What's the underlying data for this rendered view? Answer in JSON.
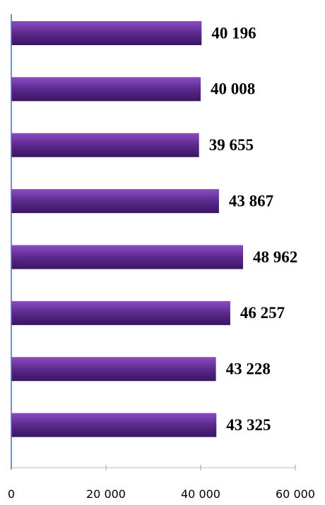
{
  "chart_data": {
    "type": "bar",
    "orientation": "horizontal",
    "values": [
      40196,
      40008,
      39655,
      43867,
      48962,
      46257,
      43228,
      43325
    ],
    "value_labels": [
      "40 196",
      "40 008",
      "39 655",
      "43 867",
      "48 962",
      "46 257",
      "43 228",
      "43 325"
    ],
    "color": "#5b2a8c",
    "xlim": [
      0,
      60000
    ],
    "xticks": [
      0,
      {
        "value": 20000,
        "label": "20 000"
      },
      {
        "value": 40000,
        "label": "40 000"
      },
      {
        "value": 60000,
        "label": "60 000"
      }
    ],
    "grid": false
  }
}
